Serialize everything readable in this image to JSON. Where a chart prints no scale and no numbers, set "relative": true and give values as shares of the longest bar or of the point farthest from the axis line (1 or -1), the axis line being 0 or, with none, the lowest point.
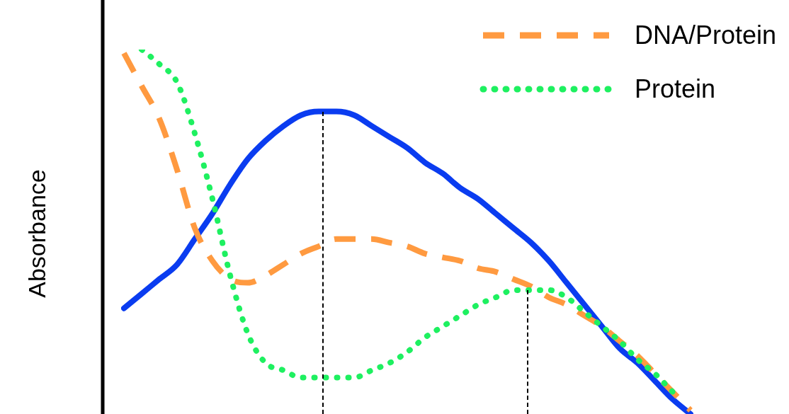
{
  "chart_data": {
    "type": "line",
    "relative": true,
    "ylabel": "Absorbance",
    "legend": "top right",
    "tick_labels": false,
    "categories": [
      null,
      null,
      null,
      null,
      null,
      null,
      null,
      null,
      null,
      null,
      null,
      null,
      null,
      null,
      null,
      null,
      null,
      null,
      null,
      null,
      null,
      null,
      null,
      null,
      null,
      null,
      null,
      null,
      null,
      null,
      null,
      null,
      null
    ],
    "series": [
      {
        "color": "#0a3cf0",
        "line_style": "solid",
        "values": [
          0.29,
          0.33,
          0.37,
          0.41,
          0.48,
          0.55,
          0.63,
          0.7,
          0.75,
          0.79,
          0.82,
          0.83,
          0.83,
          0.82,
          0.79,
          0.76,
          0.73,
          0.69,
          0.66,
          0.62,
          0.59,
          0.55,
          0.51,
          0.47,
          0.42,
          0.36,
          0.3,
          0.24,
          0.18,
          0.14,
          0.09,
          0.04,
          0
        ]
      },
      {
        "name": "DNA/Protein",
        "color": "#ff9a40",
        "line_style": "dashed",
        "values": [
          0.99,
          0.9,
          0.81,
          0.67,
          0.51,
          0.42,
          0.37,
          0.36,
          0.38,
          0.41,
          0.44,
          0.46,
          0.48,
          0.48,
          0.48,
          0.47,
          0.46,
          0.44,
          0.43,
          0.42,
          0.4,
          0.39,
          0.37,
          0.35,
          0.32,
          0.3,
          0.27,
          0.24,
          0.2,
          0.16,
          0.11,
          0.06,
          0.01
        ]
      },
      {
        "name": "Protein",
        "color": "#1ef060",
        "line_style": "dotted",
        "values": [
          null,
          1.0,
          0.96,
          0.91,
          0.77,
          0.59,
          0.38,
          0.22,
          0.14,
          0.12,
          0.1,
          0.1,
          0.1,
          0.1,
          0.12,
          0.14,
          0.17,
          0.21,
          0.24,
          0.27,
          0.3,
          0.32,
          0.34,
          0.34,
          0.34,
          0.32,
          0.28,
          0.24,
          0.2,
          0.15,
          0.11,
          0.06,
          null
        ]
      }
    ],
    "marker": "none"
  }
}
